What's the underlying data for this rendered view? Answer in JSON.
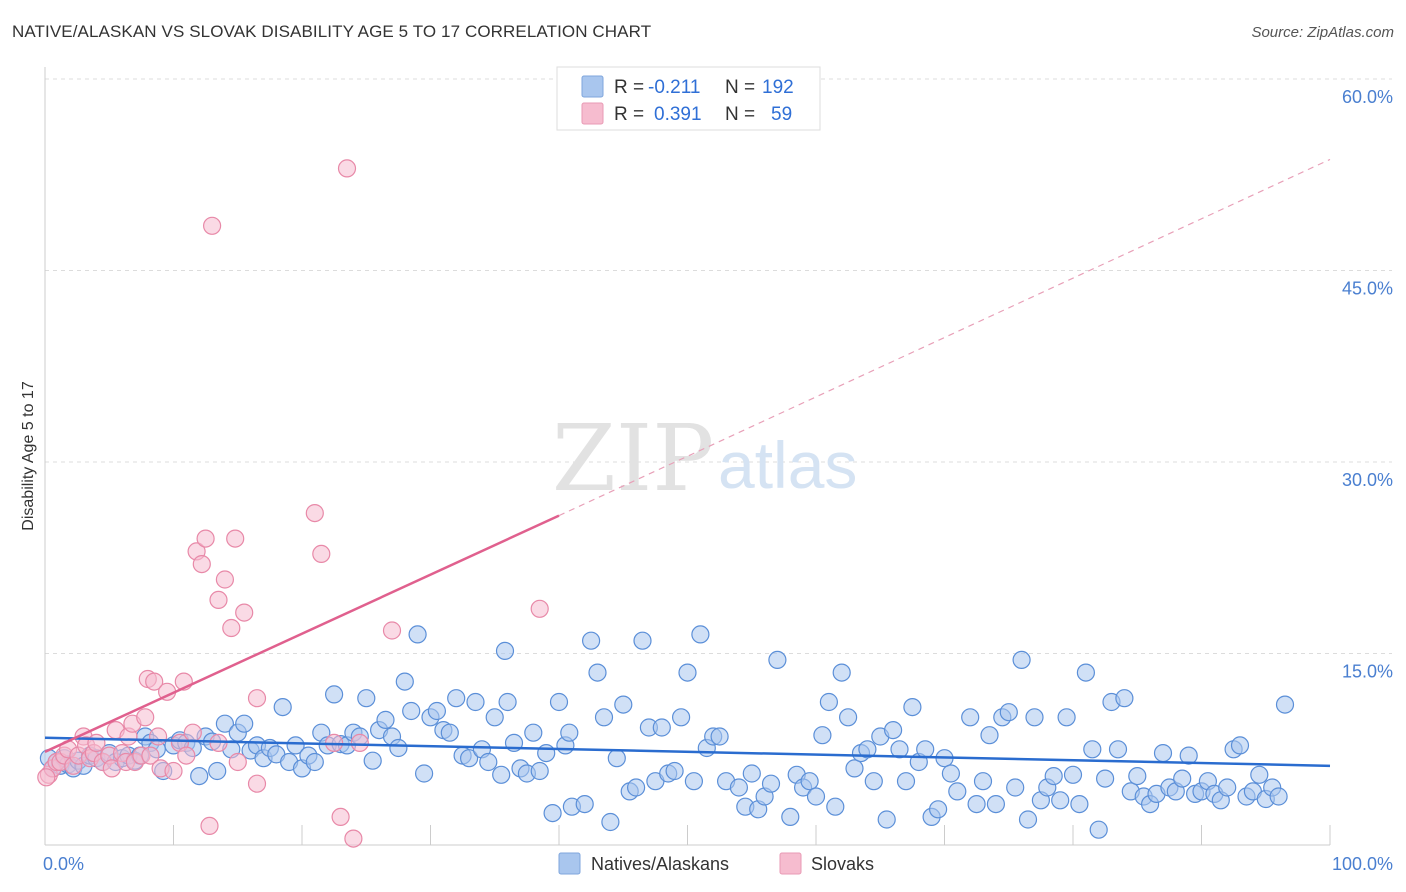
{
  "header": {
    "title": "NATIVE/ALASKAN VS SLOVAK DISABILITY AGE 5 TO 17 CORRELATION CHART",
    "source": "Source: ZipAtlas.com"
  },
  "watermark": {
    "zip": "ZIP",
    "atlas": "atlas"
  },
  "legend": {
    "rows": [
      {
        "r_label": "R =",
        "r_value": "-0.211",
        "n_label": "N =",
        "n_value": "192",
        "color": "#a9c6ee"
      },
      {
        "r_label": "R =",
        "r_value": "0.391",
        "n_label": "N =",
        "n_value": "59",
        "color": "#f6bccf"
      }
    ]
  },
  "bottom_legend": {
    "items": [
      {
        "label": "Natives/Alaskans",
        "color": "#a9c6ee"
      },
      {
        "label": "Slovaks",
        "color": "#f6bccf"
      }
    ]
  },
  "chart_data": {
    "type": "scatter",
    "title": "NATIVE/ALASKAN VS SLOVAK DISABILITY AGE 5 TO 17 CORRELATION CHART",
    "ylabel": "Disability Age 5 to 17",
    "xlabel": "",
    "xlim": [
      0,
      100
    ],
    "ylim": [
      0,
      62
    ],
    "x_tick_labels": [
      "0.0%",
      "100.0%"
    ],
    "y_ticks": [
      15,
      30,
      45,
      60
    ],
    "y_tick_labels": [
      "15.0%",
      "30.0%",
      "45.0%",
      "60.0%"
    ],
    "grid": true,
    "series": [
      {
        "name": "Natives/Alaskans",
        "color": "#5b8fd8",
        "fill": "#a9c6ee",
        "trend": {
          "x": [
            0,
            100
          ],
          "y": [
            8.4,
            6.2
          ],
          "color": "#2a6ccf"
        },
        "points": [
          [
            0.3,
            6.8
          ],
          [
            0.6,
            6.0
          ],
          [
            0.9,
            6.5
          ],
          [
            1.2,
            6.2
          ],
          [
            1.5,
            6.8
          ],
          [
            1.8,
            6.3
          ],
          [
            2.2,
            6.0
          ],
          [
            2.6,
            6.6
          ],
          [
            3.0,
            6.2
          ],
          [
            3.5,
            7.0
          ],
          [
            4.0,
            6.8
          ],
          [
            4.5,
            6.5
          ],
          [
            5.0,
            7.2
          ],
          [
            5.5,
            6.5
          ],
          [
            6.0,
            6.8
          ],
          [
            6.5,
            7.0
          ],
          [
            7.0,
            6.6
          ],
          [
            7.4,
            7.0
          ],
          [
            7.8,
            8.5
          ],
          [
            8.2,
            8.0
          ],
          [
            8.7,
            7.5
          ],
          [
            9.2,
            5.8
          ],
          [
            10.0,
            7.8
          ],
          [
            10.5,
            8.2
          ],
          [
            11.0,
            8.0
          ],
          [
            11.5,
            7.6
          ],
          [
            12.0,
            5.4
          ],
          [
            12.5,
            8.5
          ],
          [
            13.0,
            8.1
          ],
          [
            13.4,
            5.8
          ],
          [
            14.0,
            9.5
          ],
          [
            14.5,
            7.5
          ],
          [
            15.0,
            8.8
          ],
          [
            15.5,
            9.5
          ],
          [
            16.0,
            7.4
          ],
          [
            16.5,
            7.8
          ],
          [
            17.0,
            6.8
          ],
          [
            17.5,
            7.6
          ],
          [
            18.0,
            7.1
          ],
          [
            18.5,
            10.8
          ],
          [
            19.0,
            6.5
          ],
          [
            19.5,
            7.8
          ],
          [
            20.0,
            6.0
          ],
          [
            20.5,
            7.0
          ],
          [
            21.0,
            6.5
          ],
          [
            21.5,
            8.8
          ],
          [
            22.0,
            7.8
          ],
          [
            22.5,
            11.8
          ],
          [
            23.0,
            7.9
          ],
          [
            23.5,
            7.8
          ],
          [
            24.0,
            8.8
          ],
          [
            24.5,
            8.5
          ],
          [
            25.0,
            11.5
          ],
          [
            25.5,
            6.6
          ],
          [
            26.0,
            9.0
          ],
          [
            26.5,
            9.8
          ],
          [
            27.0,
            8.5
          ],
          [
            27.5,
            7.6
          ],
          [
            28.0,
            12.8
          ],
          [
            28.5,
            10.5
          ],
          [
            29.0,
            16.5
          ],
          [
            29.5,
            5.6
          ],
          [
            30.0,
            10.0
          ],
          [
            30.5,
            10.5
          ],
          [
            31.0,
            9.0
          ],
          [
            31.5,
            8.8
          ],
          [
            32.0,
            11.5
          ],
          [
            32.5,
            7.0
          ],
          [
            33.0,
            6.8
          ],
          [
            33.5,
            11.2
          ],
          [
            34.0,
            7.5
          ],
          [
            34.5,
            6.5
          ],
          [
            35.0,
            10.0
          ],
          [
            35.5,
            5.5
          ],
          [
            35.8,
            15.2
          ],
          [
            36.0,
            11.2
          ],
          [
            36.5,
            8.0
          ],
          [
            37.0,
            6.0
          ],
          [
            37.5,
            5.6
          ],
          [
            38.0,
            8.8
          ],
          [
            38.5,
            5.8
          ],
          [
            39.0,
            7.2
          ],
          [
            39.5,
            2.5
          ],
          [
            40.0,
            11.2
          ],
          [
            40.5,
            7.8
          ],
          [
            40.8,
            8.8
          ],
          [
            41.0,
            3.0
          ],
          [
            42.0,
            3.2
          ],
          [
            42.5,
            16.0
          ],
          [
            43.0,
            13.5
          ],
          [
            43.5,
            10.0
          ],
          [
            44.0,
            1.8
          ],
          [
            44.5,
            6.8
          ],
          [
            45.0,
            11.0
          ],
          [
            45.5,
            4.2
          ],
          [
            46.0,
            4.5
          ],
          [
            46.5,
            16.0
          ],
          [
            47.0,
            9.2
          ],
          [
            47.5,
            5.0
          ],
          [
            48.0,
            9.2
          ],
          [
            48.5,
            5.6
          ],
          [
            49.0,
            5.8
          ],
          [
            49.5,
            10.0
          ],
          [
            50.0,
            13.5
          ],
          [
            50.5,
            5.0
          ],
          [
            51.0,
            16.5
          ],
          [
            51.5,
            7.6
          ],
          [
            52.0,
            8.5
          ],
          [
            52.5,
            8.5
          ],
          [
            53.0,
            5.0
          ],
          [
            54.0,
            4.5
          ],
          [
            54.5,
            3.0
          ],
          [
            55.0,
            5.6
          ],
          [
            55.5,
            2.8
          ],
          [
            56.0,
            3.8
          ],
          [
            56.5,
            4.8
          ],
          [
            57.0,
            14.5
          ],
          [
            58.0,
            2.2
          ],
          [
            58.5,
            5.5
          ],
          [
            59.0,
            4.5
          ],
          [
            59.5,
            5.0
          ],
          [
            60.0,
            3.8
          ],
          [
            60.5,
            8.6
          ],
          [
            61.0,
            11.2
          ],
          [
            61.5,
            3.0
          ],
          [
            62.0,
            13.5
          ],
          [
            62.5,
            10.0
          ],
          [
            63.0,
            6.0
          ],
          [
            63.5,
            7.2
          ],
          [
            64.0,
            7.5
          ],
          [
            64.5,
            5.0
          ],
          [
            65.0,
            8.5
          ],
          [
            65.5,
            2.0
          ],
          [
            66.0,
            9.0
          ],
          [
            66.5,
            7.5
          ],
          [
            67.0,
            5.0
          ],
          [
            67.5,
            10.8
          ],
          [
            68.0,
            6.5
          ],
          [
            68.5,
            7.5
          ],
          [
            69.0,
            2.2
          ],
          [
            69.5,
            2.8
          ],
          [
            70.0,
            6.8
          ],
          [
            70.5,
            5.6
          ],
          [
            71.0,
            4.2
          ],
          [
            72.0,
            10.0
          ],
          [
            72.5,
            3.2
          ],
          [
            73.0,
            5.0
          ],
          [
            73.5,
            8.6
          ],
          [
            74.0,
            3.2
          ],
          [
            74.5,
            10.0
          ],
          [
            75.0,
            10.4
          ],
          [
            75.5,
            4.5
          ],
          [
            76.0,
            14.5
          ],
          [
            76.5,
            2.0
          ],
          [
            77.0,
            10.0
          ],
          [
            77.5,
            3.5
          ],
          [
            78.0,
            4.5
          ],
          [
            78.5,
            5.4
          ],
          [
            79.0,
            3.5
          ],
          [
            79.5,
            10.0
          ],
          [
            80.0,
            5.5
          ],
          [
            80.5,
            3.2
          ],
          [
            81.0,
            13.5
          ],
          [
            81.5,
            7.5
          ],
          [
            82.0,
            1.2
          ],
          [
            82.5,
            5.2
          ],
          [
            83.0,
            11.2
          ],
          [
            83.5,
            7.5
          ],
          [
            84.0,
            11.5
          ],
          [
            84.5,
            4.2
          ],
          [
            85.0,
            5.4
          ],
          [
            85.5,
            3.8
          ],
          [
            86.0,
            3.2
          ],
          [
            86.5,
            4.0
          ],
          [
            87.0,
            7.2
          ],
          [
            87.5,
            4.5
          ],
          [
            88.0,
            4.2
          ],
          [
            88.5,
            5.2
          ],
          [
            89.0,
            7.0
          ],
          [
            89.5,
            4.0
          ],
          [
            90.0,
            4.2
          ],
          [
            90.5,
            5.0
          ],
          [
            91.0,
            4.0
          ],
          [
            91.5,
            3.5
          ],
          [
            92.0,
            4.5
          ],
          [
            92.5,
            7.5
          ],
          [
            93.0,
            7.8
          ],
          [
            93.5,
            3.8
          ],
          [
            94.0,
            4.2
          ],
          [
            94.5,
            5.5
          ],
          [
            95.0,
            3.6
          ],
          [
            95.5,
            4.5
          ],
          [
            96.0,
            3.8
          ],
          [
            96.5,
            11.0
          ]
        ]
      },
      {
        "name": "Slovaks",
        "color": "#e889a8",
        "fill": "#f6bccf",
        "trend": {
          "x": [
            0,
            40
          ],
          "y": [
            7.3,
            25.8
          ],
          "dashed_to": [
            100,
            53.7
          ],
          "color": "#e0608e"
        },
        "points": [
          [
            0.3,
            5.5
          ],
          [
            0.6,
            6.0
          ],
          [
            0.9,
            6.5
          ],
          [
            1.2,
            6.5
          ],
          [
            1.5,
            7.0
          ],
          [
            1.8,
            7.5
          ],
          [
            2.2,
            6.2
          ],
          [
            2.6,
            7.0
          ],
          [
            3.0,
            8.5
          ],
          [
            3.2,
            7.8
          ],
          [
            3.5,
            6.8
          ],
          [
            3.8,
            7.2
          ],
          [
            4.0,
            8.0
          ],
          [
            4.5,
            6.5
          ],
          [
            5.0,
            7.0
          ],
          [
            5.2,
            6.0
          ],
          [
            5.5,
            9.0
          ],
          [
            6.0,
            7.2
          ],
          [
            6.3,
            6.5
          ],
          [
            6.5,
            8.5
          ],
          [
            6.8,
            9.5
          ],
          [
            7.0,
            6.5
          ],
          [
            7.5,
            7.0
          ],
          [
            7.8,
            10.0
          ],
          [
            8.0,
            13.0
          ],
          [
            8.2,
            7.0
          ],
          [
            8.5,
            12.8
          ],
          [
            8.8,
            8.5
          ],
          [
            9.0,
            6.0
          ],
          [
            9.5,
            12.0
          ],
          [
            10.0,
            5.8
          ],
          [
            10.5,
            8.0
          ],
          [
            10.8,
            12.8
          ],
          [
            11.0,
            7.0
          ],
          [
            11.5,
            8.8
          ],
          [
            11.8,
            23.0
          ],
          [
            12.5,
            24.0
          ],
          [
            12.2,
            22.0
          ],
          [
            12.8,
            1.5
          ],
          [
            13.0,
            48.5
          ],
          [
            13.5,
            19.2
          ],
          [
            13.5,
            8.0
          ],
          [
            14.0,
            20.8
          ],
          [
            14.5,
            17.0
          ],
          [
            14.8,
            24.0
          ],
          [
            15.0,
            6.5
          ],
          [
            15.5,
            18.2
          ],
          [
            16.5,
            4.8
          ],
          [
            16.5,
            11.5
          ],
          [
            21.0,
            26.0
          ],
          [
            21.5,
            22.8
          ],
          [
            22.5,
            8.0
          ],
          [
            23.0,
            2.2
          ],
          [
            23.5,
            53.0
          ],
          [
            24.0,
            0.5
          ],
          [
            24.5,
            8.0
          ],
          [
            27.0,
            16.8
          ],
          [
            38.5,
            18.5
          ],
          [
            0.1,
            5.3
          ]
        ]
      }
    ]
  }
}
